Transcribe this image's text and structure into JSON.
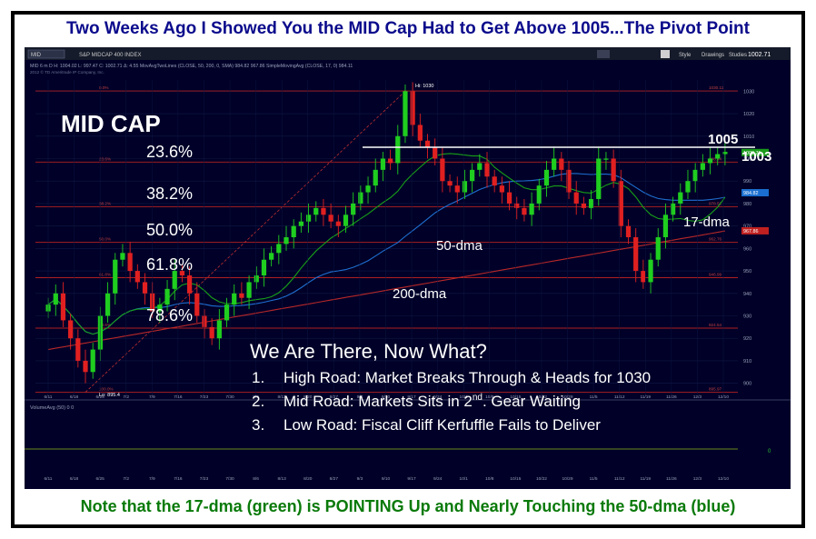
{
  "title": "Two Weeks Ago I Showed You the MID Cap Had to Get Above 1005...The Pivot Point",
  "footer": "Note that the 17-dma (green) is POINTING Up and Nearly Touching the 50-dma (blue)",
  "toolbar": {
    "symbol": "MID",
    "index_name": "S&P MIDCAP 400 INDEX",
    "style_label": "Style",
    "drawings_label": "Drawings",
    "studies_label": "Studies",
    "price": "1002.71",
    "status_line": "MID 6 m D  H: 1004.02  L: 997.47  C: 1002.71  Δ: 4.55   MovAvgTwoLines (CLOSE, 50, 200, 0, SMA)  984.82  967.86   SimpleMovingAvg (CLOSE, 17, 0)  984.11",
    "copyright": "2012 © TD Ameritrade IP Company, Inc."
  },
  "annotations": {
    "heading": "MID CAP",
    "fib": [
      "23.6%",
      "38.2%",
      "50.0%",
      "61.8%",
      "78.6%"
    ],
    "label_1005": "1005",
    "label_1003": "1003",
    "label_17dma": "17-dma",
    "label_50dma": "50-dma",
    "label_200dma": "200-dma",
    "hi_label": "Hi: 1030",
    "lo_label": "Lo: 895.4",
    "question": "We Are There, Now What?",
    "items": [
      {
        "num": "1.",
        "text": "High Road: Market Breaks Through & Heads for 1030"
      },
      {
        "num": "2.",
        "pre": "Mid Road:  Markets Sits in 2",
        "sup": "nd",
        "post": ". Gear Waiting"
      },
      {
        "num": "3.",
        "text": "Low Road:  Fiscal Cliff Kerfuffle Fails to Deliver"
      }
    ]
  },
  "chart_data": {
    "type": "candlestick",
    "ylim": [
      895,
      1035
    ],
    "yticks": [
      900,
      910,
      920,
      930,
      940,
      950,
      960,
      970,
      980,
      990,
      1000,
      1010,
      1020,
      1030
    ],
    "xticks": [
      "6/11",
      "6/18",
      "6/25",
      "7/2",
      "7/9",
      "7/16",
      "7/23",
      "7/30",
      "8/6",
      "8/13",
      "8/20",
      "8/27",
      "9/3",
      "9/10",
      "9/17",
      "9/24",
      "10/1",
      "10/8",
      "10/15",
      "10/22",
      "10/29",
      "11/5",
      "11/12",
      "11/19",
      "11/26",
      "12/3",
      "12/10"
    ],
    "hline_1005": 1005,
    "fib_levels": [
      {
        "label": "0.0%",
        "value": 1030.11
      },
      {
        "label": "23.6%",
        "value": 998.44
      },
      {
        "label": "38.2%",
        "value": 978.52
      },
      {
        "label": "50.0%",
        "value": 962.76
      },
      {
        "label": "61.8%",
        "value": 946.99
      },
      {
        "label": "78.6%",
        "value": 924.54
      },
      {
        "label": "100.0%",
        "value": 895.97
      }
    ],
    "price_tags": [
      {
        "value": "1002.71",
        "color": "#1a9a1a"
      },
      {
        "value": "984.82",
        "color": "#1a6fd0"
      },
      {
        "value": "967.86",
        "color": "#c02020"
      }
    ],
    "volume_label": "VolumeAvg (50)  0  0",
    "volume_tick": "0",
    "closes": [
      935,
      940,
      928,
      920,
      910,
      905,
      915,
      930,
      940,
      955,
      958,
      950,
      945,
      940,
      932,
      935,
      942,
      950,
      948,
      940,
      930,
      925,
      920,
      928,
      935,
      940,
      938,
      945,
      948,
      955,
      958,
      962,
      965,
      970,
      972,
      975,
      978,
      975,
      972,
      970,
      975,
      980,
      985,
      988,
      995,
      1000,
      998,
      1010,
      1030,
      1015,
      1008,
      1005,
      1000,
      990,
      988,
      985,
      990,
      995,
      998,
      992,
      988,
      985,
      980,
      978,
      975,
      980,
      988,
      995,
      1000,
      995,
      985,
      980,
      978,
      982,
      1000,
      1000,
      990,
      970,
      965,
      950,
      945,
      955,
      965,
      975,
      980,
      985,
      990,
      995,
      998,
      1000,
      1002,
      1003
    ]
  }
}
